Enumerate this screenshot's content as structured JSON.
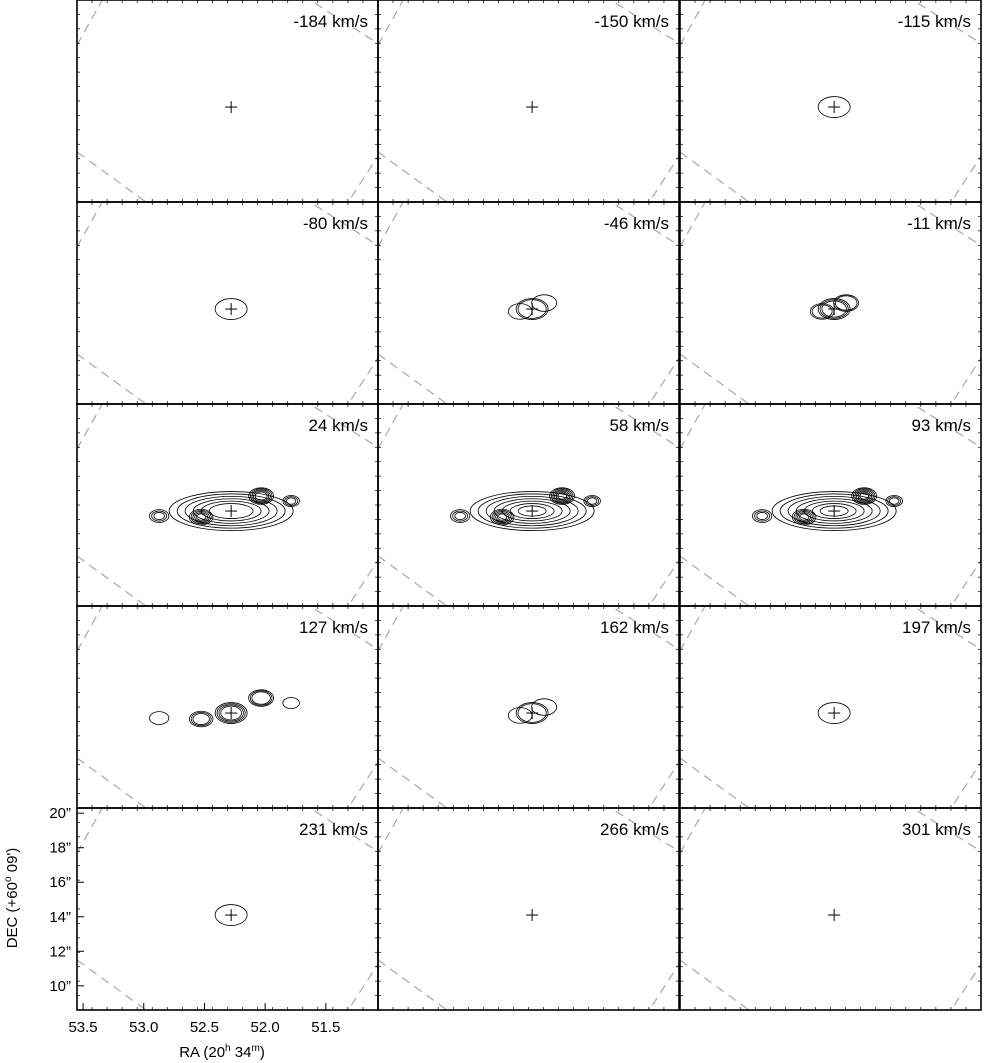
{
  "chart_data": {
    "type": "channel-map",
    "xlabel": "RA (20h 34m)",
    "xlabel_parts": [
      "RA (20",
      "h",
      " 34",
      "m",
      ")"
    ],
    "ylabel": "DEC (+60° 09')",
    "ylabel_parts": [
      "DEC (+60",
      "o",
      " 09')"
    ],
    "x_ticks": [
      {
        "value": 53.5,
        "label": "53.5"
      },
      {
        "value": 53.0,
        "label": "53.0"
      },
      {
        "value": 52.5,
        "label": "52.5"
      },
      {
        "value": 52.0,
        "label": "52.0"
      },
      {
        "value": 51.5,
        "label": "51.5"
      }
    ],
    "y_ticks": [
      {
        "value": 20,
        "label": "20”"
      },
      {
        "value": 18,
        "label": "18”"
      },
      {
        "value": 16,
        "label": "16”"
      },
      {
        "value": 14,
        "label": "14”"
      },
      {
        "value": 12,
        "label": "12”"
      },
      {
        "value": 10,
        "label": "10”"
      }
    ],
    "x_range": [
      53.55,
      51.07
    ],
    "y_range": [
      8.6,
      20.3
    ],
    "center": {
      "ra_s": 52.28,
      "dec_arcsec": 14.1
    },
    "grid": "3 columns x 5 rows",
    "panels": [
      {
        "velocity": "-184 km/s",
        "peak_levels": 0
      },
      {
        "velocity": "-150 km/s",
        "peak_levels": 0
      },
      {
        "velocity": "-115 km/s",
        "peak_levels": 1
      },
      {
        "velocity": "-80 km/s",
        "peak_levels": 1
      },
      {
        "velocity": "-46 km/s",
        "peak_levels": 2
      },
      {
        "velocity": "-11 km/s",
        "peak_levels": 3
      },
      {
        "velocity": "24 km/s",
        "peak_levels": 6
      },
      {
        "velocity": "58 km/s",
        "peak_levels": 7
      },
      {
        "velocity": "93 km/s",
        "peak_levels": 7
      },
      {
        "velocity": "127 km/s",
        "peak_levels": 4
      },
      {
        "velocity": "162 km/s",
        "peak_levels": 2
      },
      {
        "velocity": "197 km/s",
        "peak_levels": 1
      },
      {
        "velocity": "231 km/s",
        "peak_levels": 1
      },
      {
        "velocity": "266 km/s",
        "peak_levels": 0
      },
      {
        "velocity": "301 km/s",
        "peak_levels": 0
      }
    ],
    "features": [
      "black contour levels of emission",
      "cross marks the central position",
      "grey dashed lines"
    ],
    "colors": {
      "contour": "#000000",
      "dashed": "#a8a8a8",
      "frame": "#000000"
    }
  }
}
